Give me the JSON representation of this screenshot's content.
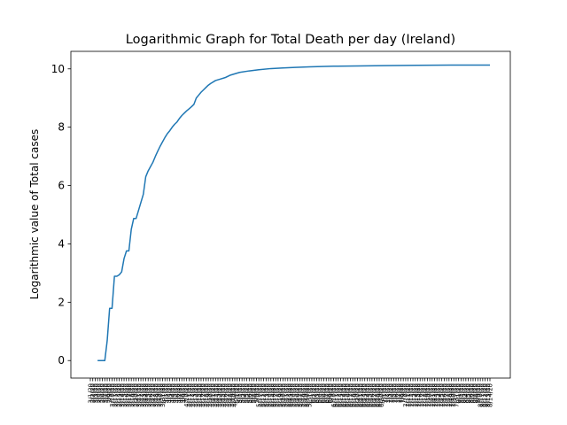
{
  "chart_data": {
    "type": "line",
    "title": "Logarithmic Graph for Total Death per day (Ireland)",
    "xlabel": "",
    "ylabel": "Logarithmic value of Total cases",
    "ylim": [
      -0.6,
      10.6
    ],
    "yticks": [
      0,
      2,
      4,
      6,
      8,
      10
    ],
    "grid": false,
    "x_first_date": "3/1/20",
    "x_last_date": "8/14/20",
    "x_tick_labels": [
      "3/1/20",
      "3/2/20",
      "3/3/20",
      "3/4/20",
      "3/5/20",
      "3/6/20",
      "3/7/20",
      "3/8/20",
      "3/9/20",
      "3/10/20",
      "3/11/20",
      "3/12/20",
      "3/13/20",
      "3/14/20",
      "3/15/20",
      "3/16/20",
      "3/17/20",
      "3/18/20",
      "3/19/20",
      "3/20/20",
      "3/21/20",
      "3/22/20",
      "3/23/20",
      "3/24/20",
      "3/25/20",
      "3/26/20",
      "3/27/20",
      "3/28/20",
      "3/29/20",
      "3/30/20",
      "3/31/20",
      "4/1/20",
      "4/2/20",
      "4/3/20",
      "4/4/20",
      "4/5/20",
      "4/6/20",
      "4/7/20",
      "4/8/20",
      "4/9/20",
      "4/10/20",
      "4/11/20",
      "4/12/20",
      "4/13/20",
      "4/14/20",
      "4/15/20",
      "4/16/20",
      "4/17/20",
      "4/18/20",
      "4/19/20",
      "4/20/20",
      "4/21/20",
      "4/22/20",
      "4/23/20",
      "4/24/20",
      "4/25/20",
      "4/26/20",
      "4/27/20",
      "4/28/20",
      "4/29/20",
      "4/30/20",
      "5/1/20",
      "5/2/20",
      "5/3/20",
      "5/4/20",
      "5/5/20",
      "5/6/20",
      "5/7/20",
      "5/8/20",
      "5/9/20",
      "5/10/20",
      "5/11/20",
      "5/12/20",
      "5/13/20",
      "5/14/20",
      "5/15/20",
      "5/16/20",
      "5/17/20",
      "5/18/20",
      "5/19/20",
      "5/20/20",
      "5/21/20",
      "5/22/20",
      "5/23/20",
      "5/24/20",
      "5/25/20",
      "5/26/20",
      "5/27/20",
      "5/28/20",
      "5/29/20",
      "5/30/20",
      "5/31/20",
      "6/1/20",
      "6/2/20",
      "6/3/20",
      "6/4/20",
      "6/5/20",
      "6/6/20",
      "6/7/20",
      "6/8/20",
      "6/9/20",
      "6/10/20",
      "6/11/20",
      "6/12/20",
      "6/13/20",
      "6/14/20",
      "6/15/20",
      "6/16/20",
      "6/17/20",
      "6/18/20",
      "6/19/20",
      "6/20/20",
      "6/21/20",
      "6/22/20",
      "6/23/20",
      "6/24/20",
      "6/25/20",
      "6/26/20",
      "6/27/20",
      "6/28/20",
      "6/29/20",
      "6/30/20",
      "7/1/20",
      "7/2/20",
      "7/3/20",
      "7/4/20",
      "7/5/20",
      "7/6/20",
      "7/7/20",
      "7/8/20",
      "7/9/20",
      "7/10/20",
      "7/11/20",
      "7/12/20",
      "7/13/20",
      "7/14/20",
      "7/15/20",
      "7/16/20",
      "7/17/20",
      "7/18/20",
      "7/19/20",
      "7/20/20",
      "7/21/20",
      "7/22/20",
      "7/23/20",
      "7/24/20",
      "7/25/20",
      "7/26/20",
      "7/27/20",
      "7/28/20",
      "7/29/20",
      "7/30/20",
      "7/31/20",
      "8/1/20",
      "8/2/20",
      "8/3/20",
      "8/4/20",
      "8/5/20",
      "8/6/20",
      "8/7/20",
      "8/8/20",
      "8/9/20",
      "8/10/20",
      "8/11/20",
      "8/12/20",
      "8/13/20",
      "8/14/20"
    ],
    "series": [
      {
        "name": "",
        "color": "#1f77b4",
        "points": [
          [
            "3/4/20",
            0.0
          ],
          [
            "3/7/20",
            0.0
          ],
          [
            "3/8/20",
            0.69
          ],
          [
            "3/9/20",
            1.79
          ],
          [
            "3/10/20",
            1.79
          ],
          [
            "3/11/20",
            2.89
          ],
          [
            "3/12/20",
            2.89
          ],
          [
            "3/13/20",
            2.94
          ],
          [
            "3/14/20",
            3.04
          ],
          [
            "3/15/20",
            3.5
          ],
          [
            "3/16/20",
            3.76
          ],
          [
            "3/17/20",
            3.76
          ],
          [
            "3/18/20",
            4.5
          ],
          [
            "3/19/20",
            4.87
          ],
          [
            "3/20/20",
            4.87
          ],
          [
            "3/23/20",
            5.7
          ],
          [
            "3/24/20",
            6.3
          ],
          [
            "3/25/20",
            6.5
          ],
          [
            "3/26/20",
            6.65
          ],
          [
            "3/27/20",
            6.8
          ],
          [
            "3/28/20",
            7.0
          ],
          [
            "3/29/20",
            7.18
          ],
          [
            "3/30/20",
            7.35
          ],
          [
            "3/31/20",
            7.5
          ],
          [
            "4/1/20",
            7.65
          ],
          [
            "4/2/20",
            7.78
          ],
          [
            "4/3/20",
            7.88
          ],
          [
            "4/4/20",
            8.0
          ],
          [
            "4/5/20",
            8.1
          ],
          [
            "4/6/20",
            8.18
          ],
          [
            "4/7/20",
            8.3
          ],
          [
            "4/8/20",
            8.4
          ],
          [
            "4/9/20",
            8.48
          ],
          [
            "4/10/20",
            8.56
          ],
          [
            "4/11/20",
            8.63
          ],
          [
            "4/12/20",
            8.7
          ],
          [
            "4/13/20",
            8.78
          ],
          [
            "4/14/20",
            9.0
          ],
          [
            "4/15/20",
            9.1
          ],
          [
            "4/16/20",
            9.2
          ],
          [
            "4/17/20",
            9.28
          ],
          [
            "4/18/20",
            9.36
          ],
          [
            "4/19/20",
            9.44
          ],
          [
            "4/20/20",
            9.5
          ],
          [
            "4/22/20",
            9.6
          ],
          [
            "4/24/20",
            9.65
          ],
          [
            "4/26/20",
            9.7
          ],
          [
            "4/28/20",
            9.78
          ],
          [
            "4/30/20",
            9.83
          ],
          [
            "5/2/20",
            9.88
          ],
          [
            "5/6/20",
            9.93
          ],
          [
            "5/10/20",
            9.97
          ],
          [
            "5/15/20",
            10.01
          ],
          [
            "5/20/20",
            10.03
          ],
          [
            "5/25/20",
            10.05
          ],
          [
            "5/31/20",
            10.07
          ],
          [
            "6/10/20",
            10.09
          ],
          [
            "6/20/20",
            10.1
          ],
          [
            "7/1/20",
            10.11
          ],
          [
            "7/15/20",
            10.12
          ],
          [
            "8/1/20",
            10.13
          ],
          [
            "8/14/20",
            10.13
          ]
        ]
      }
    ]
  }
}
